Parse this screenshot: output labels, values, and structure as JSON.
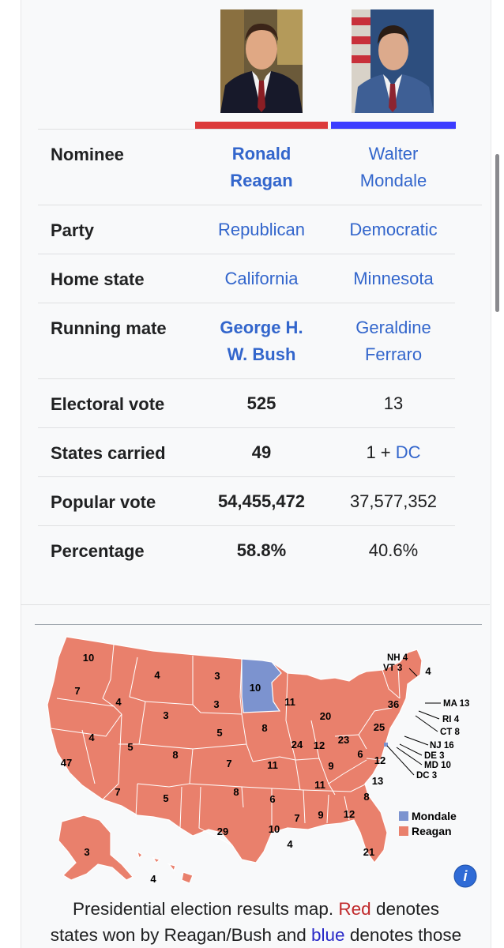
{
  "candidates": [
    {
      "photo_icon": "reagan-portrait-icon",
      "party_color": "#dc3a3a"
    },
    {
      "photo_icon": "mondale-portrait-icon",
      "party_color": "#3c3cff"
    }
  ],
  "rows": [
    {
      "label": "Nominee",
      "r": [
        "Ronald",
        "Reagan"
      ],
      "m": [
        "Walter",
        "Mondale"
      ]
    },
    {
      "label": "Party",
      "r": "Republican",
      "m": "Democratic"
    },
    {
      "label": "Home state",
      "r": "California",
      "m": "Minnesota"
    },
    {
      "label": "Running mate",
      "r": [
        "George H.",
        "W. Bush"
      ],
      "m": [
        "Geraldine",
        "Ferraro"
      ]
    },
    {
      "label": "Electoral vote",
      "r": "525",
      "m": "13"
    },
    {
      "label": "States carried",
      "r": "49",
      "m_prefix": "1 + ",
      "m_link": "DC"
    },
    {
      "label": "Popular vote",
      "r": "54,455,472",
      "m": "37,577,352"
    },
    {
      "label": "Percentage",
      "r": "58.8%",
      "m": "40.6%"
    }
  ],
  "map": {
    "colors": {
      "reagan": "#e9806c",
      "mondale": "#7c93cf",
      "border": "#ffffff"
    },
    "state_votes": [
      "10",
      "4",
      "3",
      "10",
      "4",
      "7",
      "4",
      "3",
      "3",
      "36",
      "11",
      "20",
      "8",
      "5",
      "4",
      "5",
      "8",
      "47",
      "25",
      "24",
      "12",
      "23",
      "6",
      "12",
      "7",
      "11",
      "9",
      "11",
      "13",
      "7",
      "5",
      "8",
      "6",
      "8",
      "7",
      "9",
      "12",
      "10",
      "29",
      "21",
      "3",
      "4",
      "4"
    ],
    "ne_labels": [
      "NH 4",
      "VT 3",
      "MA 13",
      "RI 4",
      "CT 8",
      "NJ 16",
      "DE 3",
      "MD 10",
      "DC 3"
    ],
    "legend": [
      {
        "label": "Mondale",
        "color": "#7c93cf"
      },
      {
        "label": "Reagan",
        "color": "#e9806c"
      }
    ],
    "info_icon": "i"
  },
  "caption": {
    "part1": "Presidential election results map. ",
    "red_word": "Red",
    "part2": " denotes",
    "part3": "states won by Reagan/Bush and ",
    "blue_word": "blue",
    "part4": " denotes those"
  }
}
